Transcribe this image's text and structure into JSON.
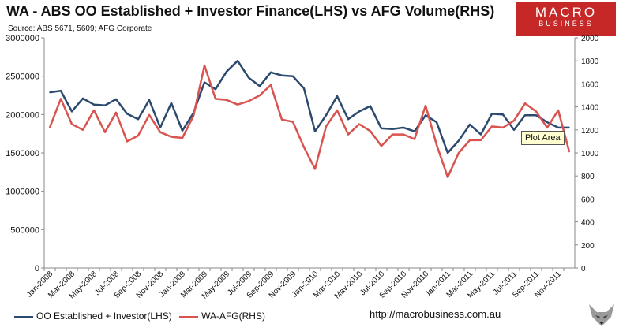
{
  "title": "WA - ABS OO Established + Investor Finance(LHS) vs AFG Volume(RHS)",
  "source": "Source: ABS 5671, 5609; AFG Corporate",
  "logo": {
    "line1": "MACRO",
    "line2": "BUSINESS"
  },
  "url": "http://macrobusiness.com.au",
  "tooltip": "Plot Area",
  "colors": {
    "oo": "#2c4a6e",
    "afg": "#d9534f",
    "brand": "#c62828"
  },
  "chart_data": {
    "type": "line",
    "title": "WA - ABS OO Established + Investor Finance(LHS) vs AFG Volume(RHS)",
    "x": [
      "Jan-2008",
      "Feb-2008",
      "Mar-2008",
      "Apr-2008",
      "May-2008",
      "Jun-2008",
      "Jul-2008",
      "Aug-2008",
      "Sep-2008",
      "Oct-2008",
      "Nov-2008",
      "Dec-2008",
      "Jan-2009",
      "Feb-2009",
      "Mar-2009",
      "Apr-2009",
      "May-2009",
      "Jun-2009",
      "Jul-2009",
      "Aug-2009",
      "Sep-2009",
      "Oct-2009",
      "Nov-2009",
      "Dec-2009",
      "Jan-2010",
      "Feb-2010",
      "Mar-2010",
      "Apr-2010",
      "May-2010",
      "Jun-2010",
      "Jul-2010",
      "Aug-2010",
      "Sep-2010",
      "Oct-2010",
      "Nov-2010",
      "Dec-2010",
      "Jan-2011",
      "Feb-2011",
      "Mar-2011",
      "Apr-2011",
      "May-2011",
      "Jun-2011",
      "Jul-2011",
      "Aug-2011",
      "Sep-2011",
      "Oct-2011",
      "Nov-2011",
      "Dec-2011"
    ],
    "x_tick_labels": [
      "Jan-2008",
      "Mar-2008",
      "May-2008",
      "Jul-2008",
      "Sep-2008",
      "Nov-2008",
      "Jan-2009",
      "Mar-2009",
      "May-2009",
      "Jul-2009",
      "Sep-2009",
      "Nov-2009",
      "Jan-2010",
      "Mar-2010",
      "May-2010",
      "Jul-2010",
      "Sep-2010",
      "Nov-2010",
      "Jan-2011",
      "Mar-2011",
      "May-2011",
      "Jul-2011",
      "Sep-2011",
      "Nov-2011"
    ],
    "y_left_ticks": [
      "0",
      "500000",
      "1000000",
      "1500000",
      "2000000",
      "2500000",
      "3000000"
    ],
    "y_left_lim": [
      0,
      3000000
    ],
    "y_right_ticks": [
      "0",
      "200",
      "400",
      "600",
      "800",
      "1000",
      "1200",
      "1400",
      "1600",
      "1800",
      "2000"
    ],
    "y_right_lim": [
      0,
      2000
    ],
    "grid": false,
    "legend_position": "bottom-left",
    "series": [
      {
        "name": "OO Established + Investor(LHS)",
        "axis": "left",
        "values": [
          2290000,
          2310000,
          2040000,
          2210000,
          2130000,
          2120000,
          2200000,
          2010000,
          1940000,
          2190000,
          1830000,
          2150000,
          1790000,
          2020000,
          2420000,
          2330000,
          2560000,
          2700000,
          2480000,
          2370000,
          2550000,
          2510000,
          2500000,
          2340000,
          1780000,
          1990000,
          2240000,
          1940000,
          2040000,
          2110000,
          1820000,
          1810000,
          1830000,
          1780000,
          1990000,
          1900000,
          1500000,
          1660000,
          1870000,
          1740000,
          2010000,
          2000000,
          1800000,
          1990000,
          1990000,
          1900000,
          1830000,
          1830000
        ]
      },
      {
        "name": "WA-AFG(RHS)",
        "axis": "right",
        "values": [
          1220,
          1470,
          1250,
          1200,
          1370,
          1180,
          1350,
          1100,
          1150,
          1330,
          1180,
          1140,
          1130,
          1320,
          1760,
          1470,
          1460,
          1420,
          1450,
          1500,
          1590,
          1290,
          1270,
          1050,
          860,
          1230,
          1370,
          1160,
          1250,
          1190,
          1060,
          1160,
          1160,
          1120,
          1410,
          1070,
          790,
          1000,
          1110,
          1110,
          1230,
          1220,
          1280,
          1430,
          1360,
          1220,
          1370,
          1010
        ]
      }
    ]
  }
}
